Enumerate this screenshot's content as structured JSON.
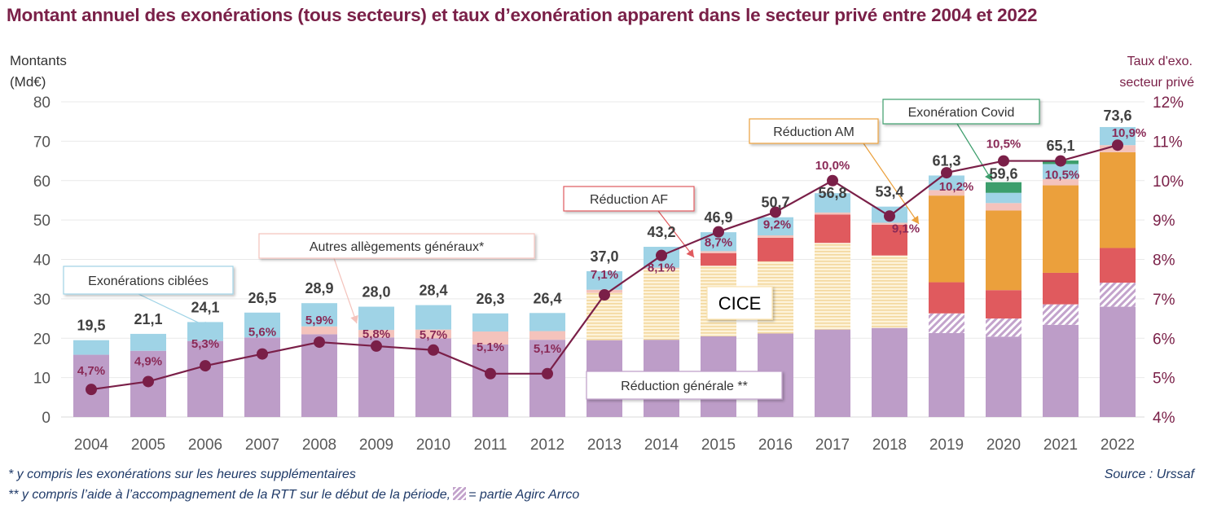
{
  "title": "Montant annuel des exonérations (tous secteurs) et taux d’exonération apparent dans le secteur privé entre 2004 et 2022",
  "footnotes": {
    "note1": "* y compris les exonérations sur les heures supplémentaires",
    "note2_before": "** y compris l’aide à l’accompagnement de la RTT sur le début de la période,",
    "note2_after": "= partie Agirc Arrco",
    "source": "Source : Urssaf"
  },
  "chart_data": {
    "type": "bar",
    "stacked": true,
    "title": "Montant annuel des exonérations (tous secteurs) et taux d’exonération apparent dans le secteur privé entre 2004 et 2022",
    "ylabel_lines": [
      "Montants",
      "(Md€)"
    ],
    "y2label_lines": [
      "Taux d'exo.",
      "secteur privé"
    ],
    "ylim": [
      0,
      80
    ],
    "yticks": [
      0,
      10,
      20,
      30,
      40,
      50,
      60,
      70,
      80
    ],
    "y2lim": [
      4,
      12
    ],
    "y2ticks": [
      "4%",
      "5%",
      "6%",
      "7%",
      "8%",
      "9%",
      "10%",
      "11%",
      "12%"
    ],
    "grid": true,
    "categories": [
      "2004",
      "2005",
      "2006",
      "2007",
      "2008",
      "2009",
      "2010",
      "2011",
      "2012",
      "2013",
      "2014",
      "2015",
      "2016",
      "2017",
      "2018",
      "2019",
      "2020",
      "2021",
      "2022"
    ],
    "totals_labels": [
      "19,5",
      "21,1",
      "24,1",
      "26,5",
      "28,9",
      "28,0",
      "28,4",
      "26,3",
      "26,4",
      "37,0",
      "43,2",
      "46,9",
      "50,7",
      "56,8",
      "53,4",
      "61,3",
      "59,6",
      "65,1",
      "73,6"
    ],
    "series": [
      {
        "name": "Réduction générale",
        "color": "#bd9dc8",
        "pattern": "solid",
        "values": [
          15.8,
          16.8,
          19.3,
          20.2,
          21.0,
          20.2,
          20.0,
          18.4,
          19.6,
          19.5,
          19.6,
          20.5,
          21.2,
          22.2,
          22.6,
          21.3,
          20.4,
          23.4,
          28.0
        ]
      },
      {
        "name": "Partie Agirc Arrco",
        "color": "#bd9dc8",
        "pattern": "hatch",
        "values": [
          0,
          0,
          0,
          0,
          0,
          0,
          0,
          0,
          0,
          0,
          0,
          0,
          0,
          0,
          0,
          5.0,
          4.6,
          5.2,
          6.1
        ]
      },
      {
        "name": "CICE",
        "color": "#fbe3b0",
        "pattern": "lines",
        "values": [
          0,
          0,
          0,
          0,
          0,
          0,
          0,
          0,
          0,
          12.0,
          18.0,
          17.9,
          18.3,
          22.0,
          18.4,
          0,
          0,
          0,
          0
        ]
      },
      {
        "name": "Réduction AF",
        "color": "#e05a5e",
        "pattern": "solid",
        "values": [
          0,
          0,
          0,
          0,
          0,
          0,
          0,
          0,
          0,
          0,
          0,
          3.2,
          6.0,
          7.2,
          7.8,
          7.9,
          7.2,
          8.0,
          8.8
        ]
      },
      {
        "name": "Réduction AM",
        "color": "#eba03c",
        "pattern": "solid",
        "values": [
          0,
          0,
          0,
          0,
          0,
          0,
          0,
          0,
          0,
          0,
          0,
          0,
          0,
          0,
          0,
          22.0,
          20.2,
          22.2,
          24.3
        ]
      },
      {
        "name": "Autres allègements généraux",
        "color": "#f4c3bc",
        "pattern": "solid",
        "values": [
          0,
          0,
          0,
          0,
          2.0,
          1.9,
          2.2,
          3.3,
          2.2,
          0.8,
          0.3,
          0.5,
          0.6,
          0.5,
          0.5,
          1.4,
          1.9,
          1.6,
          1.8
        ]
      },
      {
        "name": "Exonérations ciblées",
        "color": "#9fd3e6",
        "pattern": "solid",
        "values": [
          3.7,
          4.3,
          4.8,
          6.3,
          5.9,
          5.9,
          6.2,
          4.6,
          4.6,
          4.7,
          5.3,
          4.8,
          4.6,
          4.9,
          4.1,
          3.7,
          2.6,
          3.8,
          4.6
        ]
      },
      {
        "name": "Exonération Covid",
        "color": "#3c9e6c",
        "pattern": "solid",
        "values": [
          0,
          0,
          0,
          0,
          0,
          0,
          0,
          0,
          0,
          0,
          0,
          0,
          0,
          0,
          0,
          0,
          2.7,
          0.9,
          0
        ]
      }
    ],
    "line": {
      "name": "Taux d'exonération secteur privé",
      "color": "#7a1f48",
      "values": [
        4.7,
        4.9,
        5.3,
        5.6,
        5.9,
        5.8,
        5.7,
        5.1,
        5.1,
        7.1,
        8.1,
        8.7,
        9.2,
        10.0,
        9.1,
        10.2,
        10.5,
        10.5,
        10.9
      ],
      "labels": [
        "4,7%",
        "4,9%",
        "5,3%",
        "5,6%",
        "5,9%",
        "5,8%",
        "5,7%",
        "5,1%",
        "5,1%",
        "7,1%",
        "8,1%",
        "8,7%",
        "9,2%",
        "10,0%",
        "9,1%",
        "10,2%",
        "10,5%",
        "10,5%",
        "10,9%"
      ]
    },
    "annotations": [
      {
        "text": "Exonérations ciblées",
        "border": "#9fd3e6",
        "target_year": "2006"
      },
      {
        "text": "Autres allègements généraux*",
        "border": "#f4c3bc",
        "target_year": "2009"
      },
      {
        "text": "Réduction AF",
        "border": "#e05a5e",
        "target_year": "2015"
      },
      {
        "text": "CICE",
        "border": "#fbe3b0",
        "target_year": ""
      },
      {
        "text": "Réduction générale **",
        "border": "#bd9dc8",
        "target_year": ""
      },
      {
        "text": "Réduction AM",
        "border": "#eba03c",
        "target_year": "2019"
      },
      {
        "text": "Exonération Covid",
        "border": "#3c9e6c",
        "target_year": "2020"
      }
    ]
  }
}
